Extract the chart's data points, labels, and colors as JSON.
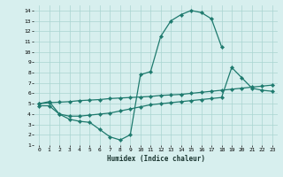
{
  "xlabel": "Humidex (Indice chaleur)",
  "bg_color": "#d7efee",
  "grid_color": "#aad5d1",
  "line_color": "#1e7a6e",
  "xlim": [
    -0.5,
    23.5
  ],
  "ylim": [
    1,
    14.5
  ],
  "xticks": [
    0,
    1,
    2,
    3,
    4,
    5,
    6,
    7,
    8,
    9,
    10,
    11,
    12,
    13,
    14,
    15,
    16,
    17,
    18,
    19,
    20,
    21,
    22,
    23
  ],
  "yticks": [
    1,
    2,
    3,
    4,
    5,
    6,
    7,
    8,
    9,
    10,
    11,
    12,
    13,
    14
  ],
  "line1_x": [
    0,
    1,
    2,
    3,
    4,
    5,
    6,
    7,
    8,
    9,
    10,
    11,
    12,
    13,
    14,
    15,
    16,
    17,
    18
  ],
  "line1_y": [
    5.0,
    5.2,
    4.0,
    3.5,
    3.3,
    3.2,
    2.5,
    1.8,
    1.5,
    2.0,
    7.8,
    8.1,
    11.5,
    13.0,
    13.6,
    14.0,
    13.8,
    13.2,
    10.5
  ],
  "line2_x": [
    0,
    1,
    2,
    3,
    4,
    5,
    6,
    7,
    8,
    9,
    10,
    11,
    12,
    13,
    14,
    15,
    16,
    17,
    18,
    19,
    20,
    21,
    22,
    23
  ],
  "line2_y": [
    5.0,
    5.1,
    5.15,
    5.2,
    5.3,
    5.35,
    5.4,
    5.5,
    5.55,
    5.6,
    5.65,
    5.7,
    5.8,
    5.85,
    5.9,
    6.0,
    6.1,
    6.2,
    6.3,
    6.4,
    6.5,
    6.6,
    6.7,
    6.8
  ],
  "line3_x": [
    0,
    1,
    2,
    3,
    4,
    5,
    6,
    7,
    8,
    9,
    10,
    11,
    12,
    13,
    14,
    15,
    16,
    17,
    18,
    19,
    20,
    21,
    22,
    23
  ],
  "line3_y": [
    4.8,
    4.8,
    4.0,
    3.8,
    3.8,
    3.9,
    4.0,
    4.1,
    4.3,
    4.5,
    4.7,
    4.9,
    5.0,
    5.1,
    5.2,
    5.3,
    5.4,
    5.5,
    5.6,
    8.5,
    7.5,
    6.5,
    6.3,
    6.2
  ]
}
